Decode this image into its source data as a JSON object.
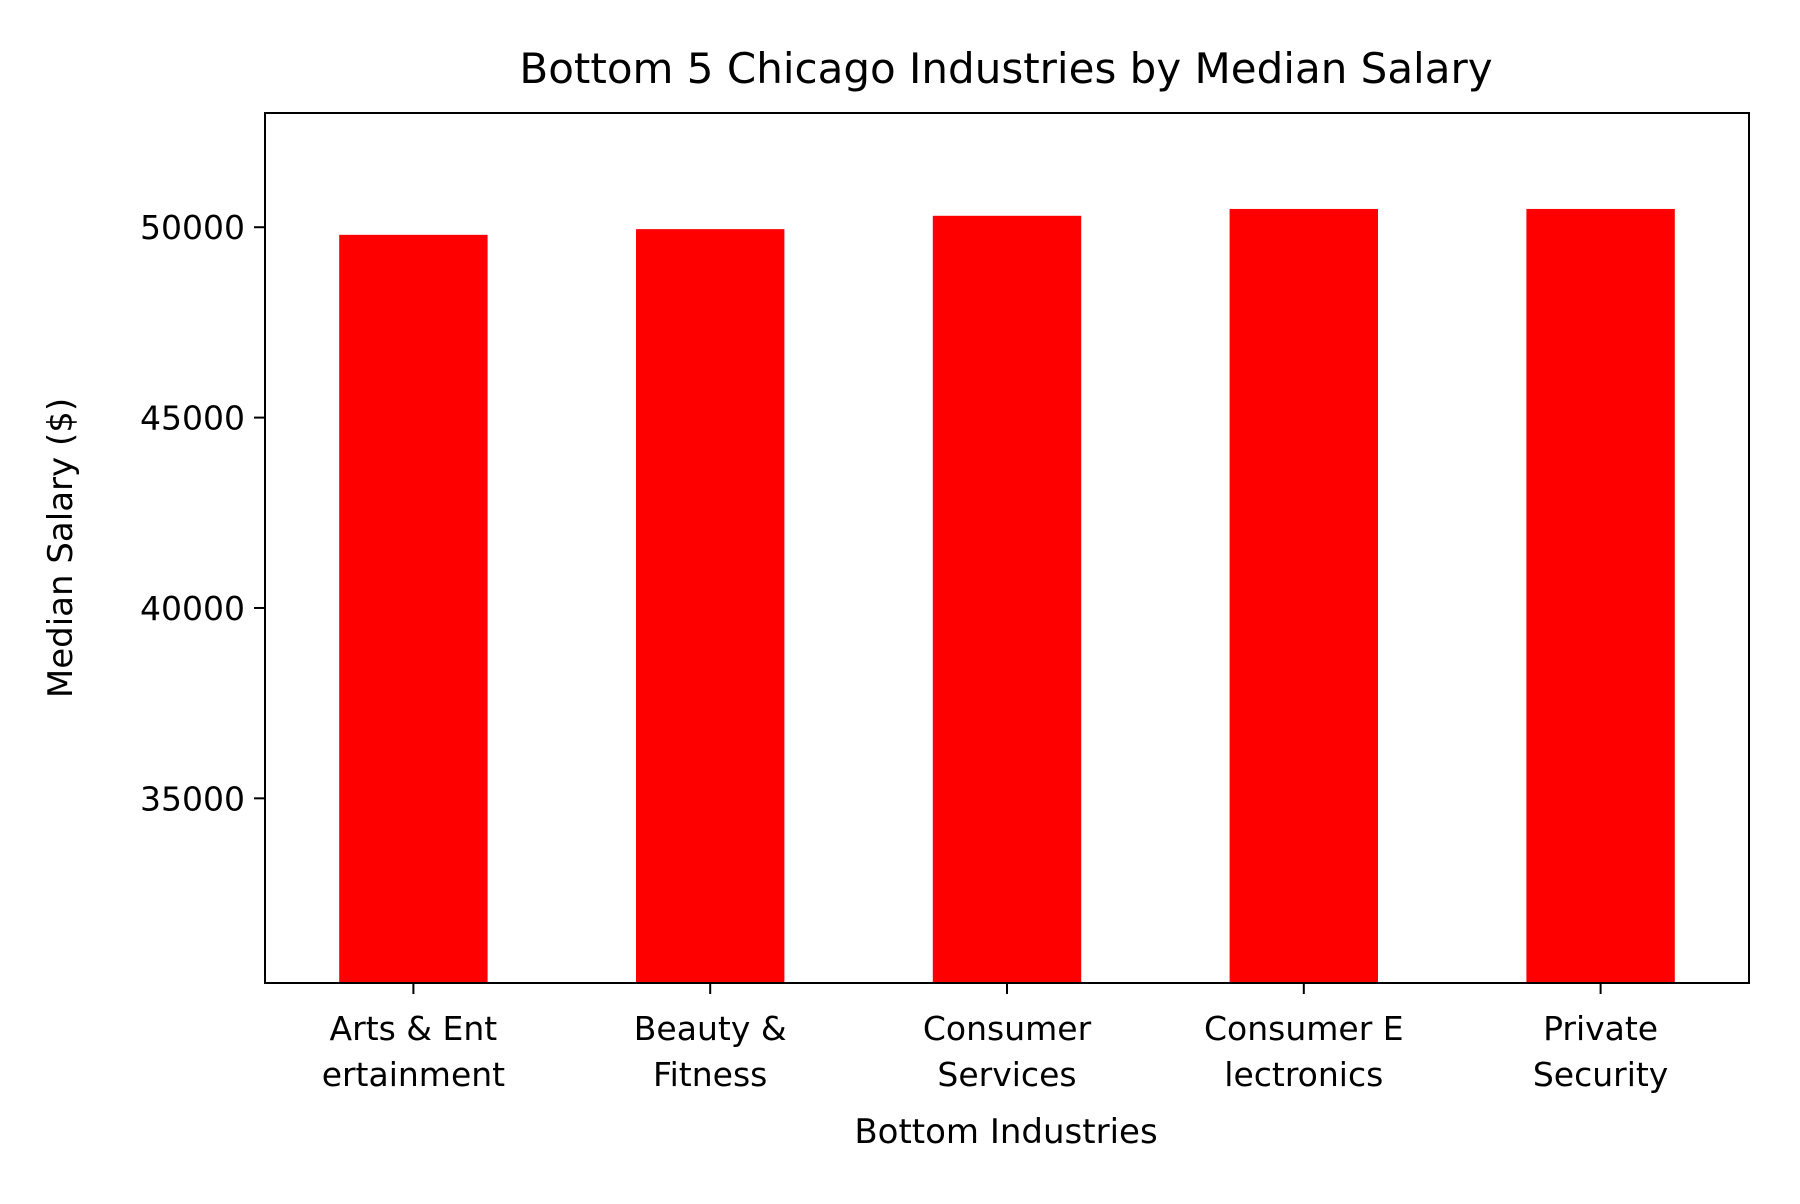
{
  "chart_data": {
    "type": "bar",
    "title": "Bottom 5 Chicago Industries by Median Salary",
    "xlabel": "Bottom Industries",
    "ylabel": "Median Salary ($)",
    "categories": [
      [
        "Arts & Ent",
        "ertainment"
      ],
      [
        "Beauty &",
        "Fitness"
      ],
      [
        "Consumer",
        "Services"
      ],
      [
        "Consumer E",
        "lectronics"
      ],
      [
        "Private",
        "Security"
      ]
    ],
    "values": [
      49800,
      49950,
      50300,
      50480,
      50480
    ],
    "ylim": [
      30150,
      53000
    ],
    "yticks": [
      35000,
      40000,
      45000,
      50000
    ],
    "ytick_labels": [
      "35000",
      "40000",
      "45000",
      "50000"
    ],
    "bar_color": "#ff0000",
    "grid": false,
    "legend": "none"
  }
}
